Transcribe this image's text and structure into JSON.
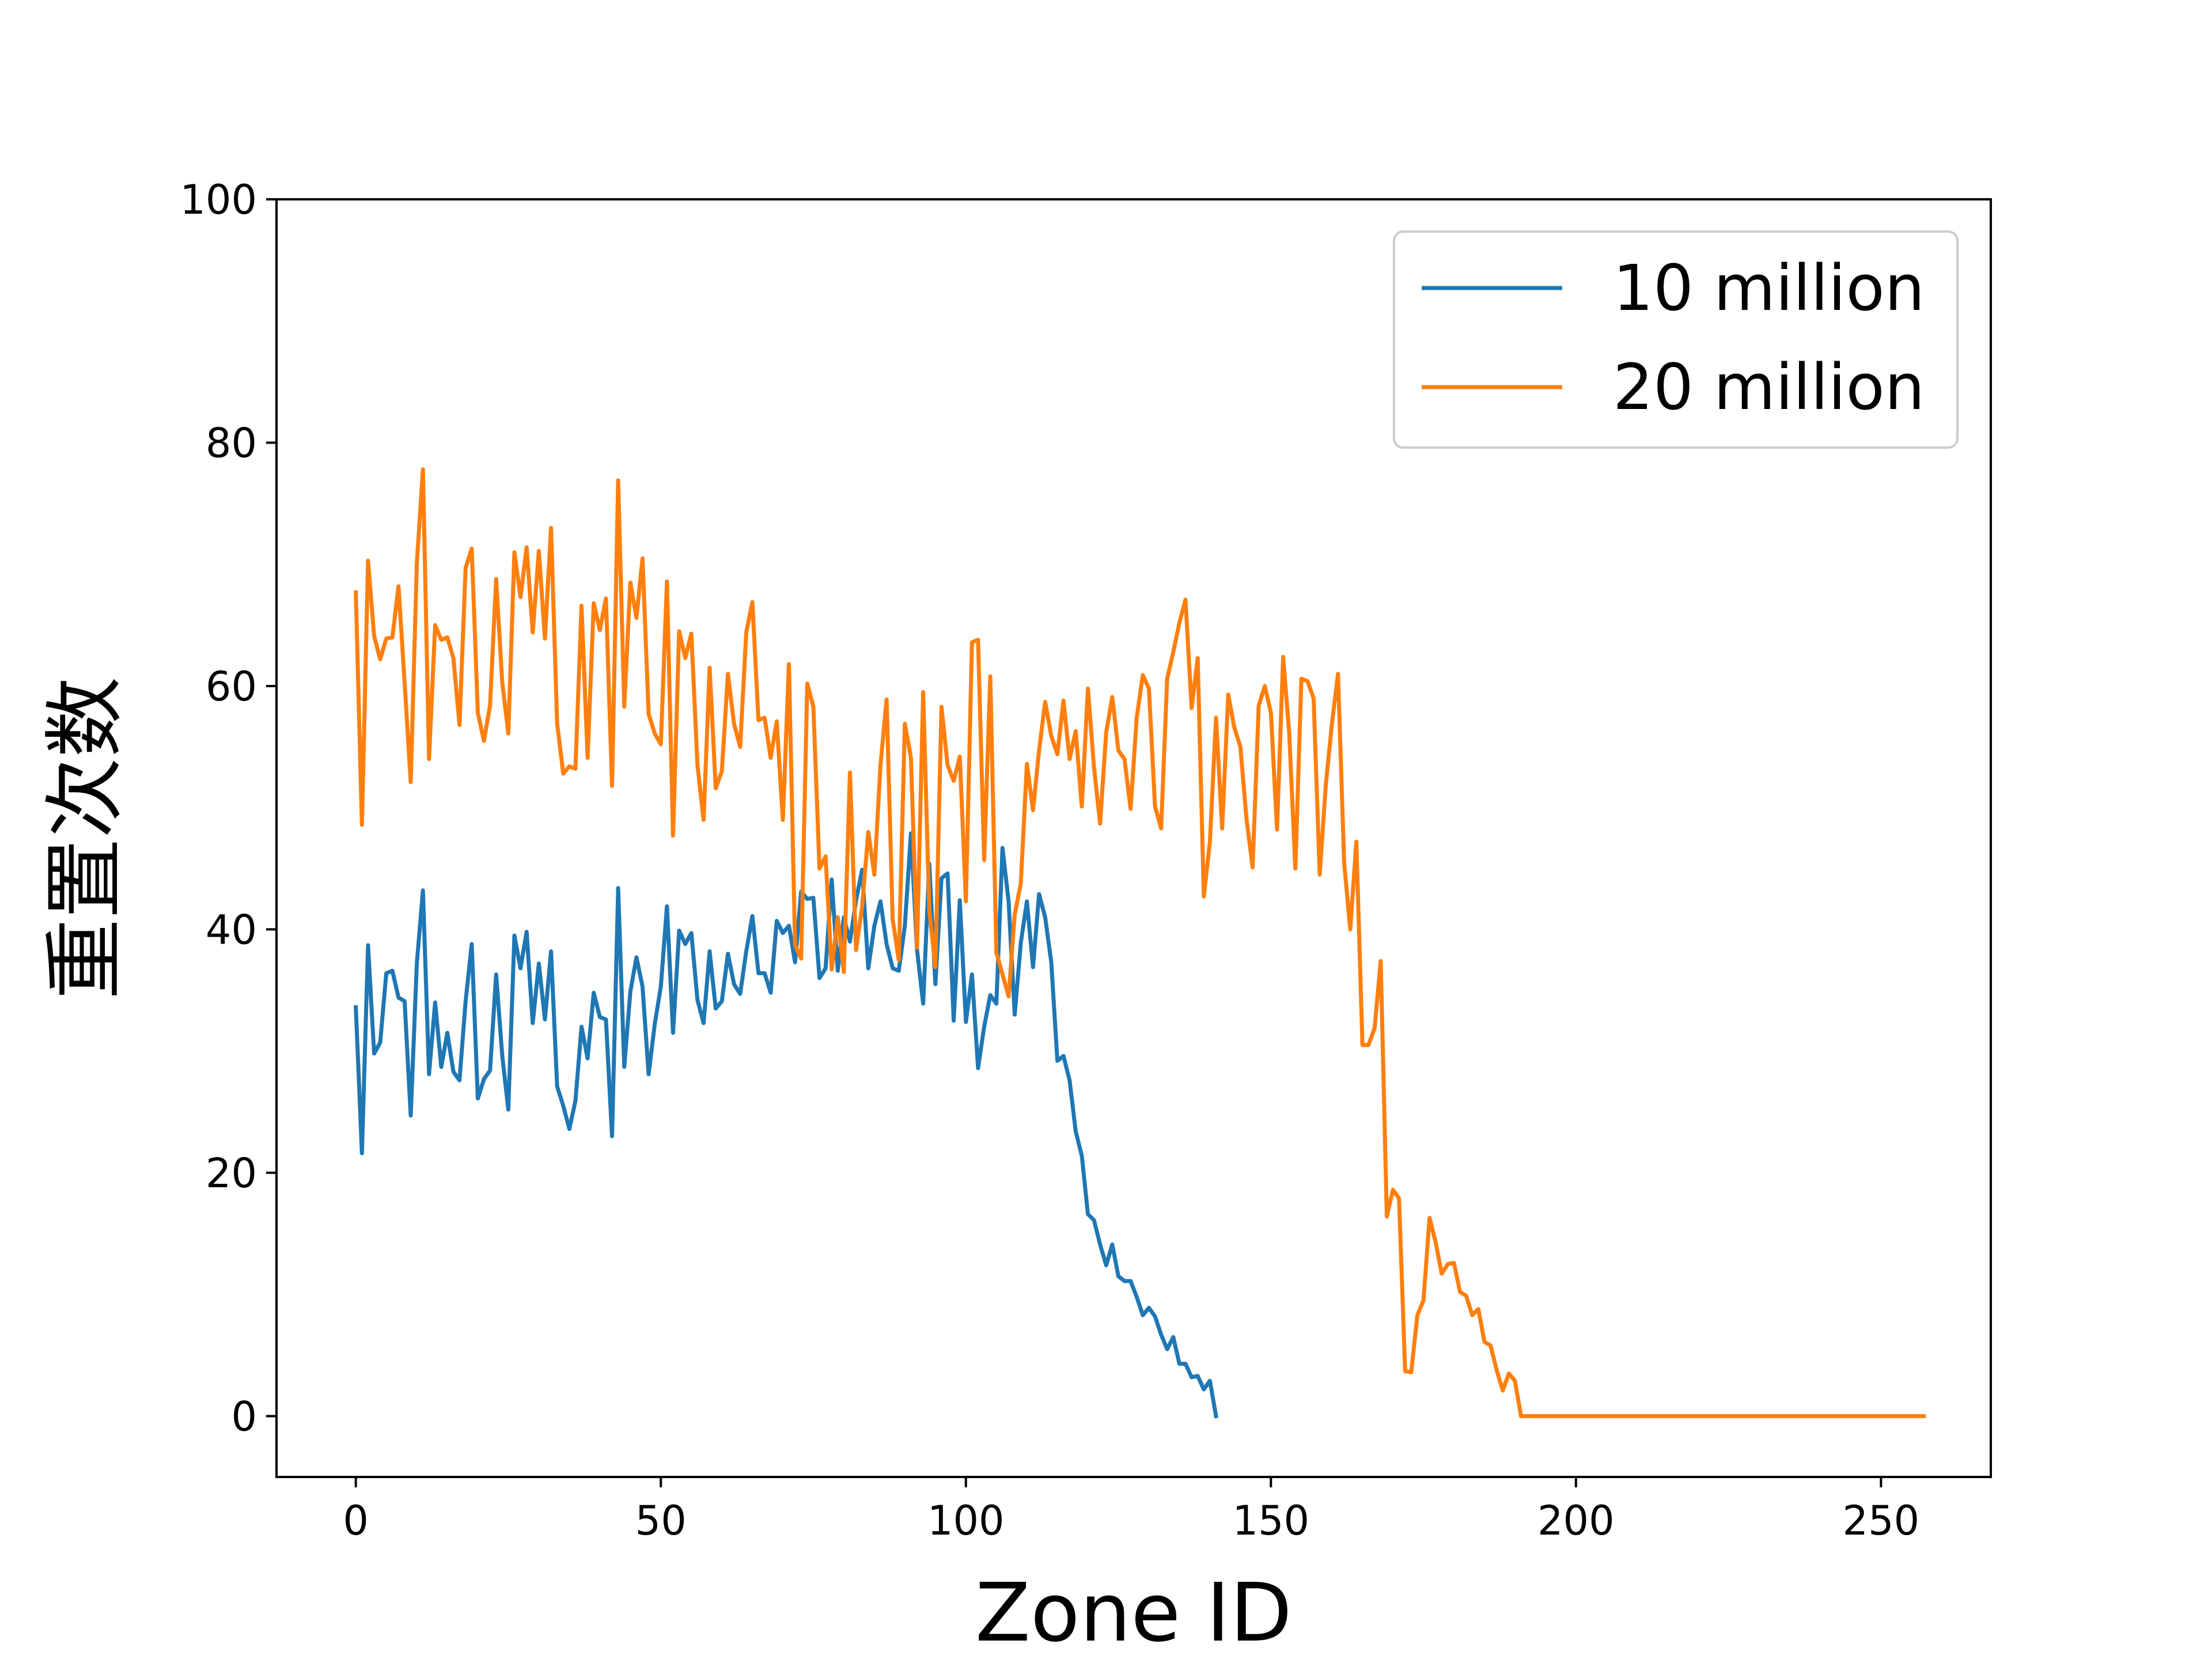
{
  "chart_data": {
    "type": "line",
    "xlabel": "Zone ID",
    "ylabel": "重置次数",
    "xlim": [
      -13,
      268
    ],
    "ylim": [
      -5,
      100
    ],
    "xticks": [
      0,
      50,
      100,
      150,
      200,
      250
    ],
    "yticks": [
      0,
      20,
      40,
      60,
      80,
      100
    ],
    "grid": false,
    "legend_position": "top-right",
    "series": [
      {
        "name": "10 million",
        "color": "#1f77b4",
        "x_start": 0,
        "values": [
          33.6,
          21.6,
          38.7,
          29.8,
          30.7,
          36.4,
          36.6,
          34.4,
          34.1,
          24.7,
          37.2,
          43.2,
          28.1,
          34,
          28.7,
          31.5,
          28.3,
          27.6,
          34.1,
          38.8,
          26.1,
          27.7,
          28.4,
          36.3,
          29.6,
          25.2,
          39.5,
          36.8,
          39.8,
          32.3,
          37.2,
          32.6,
          38.2,
          27.1,
          25.5,
          23.6,
          25.9,
          32,
          29.4,
          34.8,
          32.8,
          32.6,
          23,
          43.4,
          28.7,
          34.9,
          37.7,
          35.3,
          28.1,
          32.2,
          35.3,
          41.9,
          31.5,
          39.9,
          38.8,
          39.7,
          34.2,
          32.3,
          38.2,
          33.5,
          34.1,
          38,
          35.5,
          34.7,
          38.2,
          41.1,
          36.4,
          36.4,
          34.8,
          40.7,
          39.7,
          40.3,
          37.3,
          43.1,
          42.5,
          42.6,
          36,
          36.8,
          44.1,
          36.6,
          41,
          39,
          42.4,
          44.9,
          36.8,
          40.3,
          42.3,
          38.8,
          36.8,
          36.6,
          40.3,
          47.9,
          38.3,
          33.9,
          45.4,
          35.5,
          44.2,
          44.6,
          32.5,
          42.4,
          32.4,
          36.3,
          28.6,
          32,
          34.6,
          33.9,
          46.7,
          42.3,
          33,
          38.9,
          42.3,
          36.9,
          42.9,
          41,
          37.3,
          29.2,
          29.6,
          27.6,
          23.4,
          21.4,
          16.6,
          16.1,
          14.1,
          12.4,
          14.1,
          11.5,
          11.1,
          11.1,
          9.8,
          8.3,
          8.9,
          8.2,
          6.7,
          5.5,
          6.5,
          4.3,
          4.3,
          3.2,
          3.3,
          2.2,
          2.9,
          0
        ]
      },
      {
        "name": "20 million",
        "color": "#ff7f0e",
        "x_start": 0,
        "values": [
          67.7,
          48.6,
          70.3,
          64.1,
          62.2,
          63.9,
          64,
          68.2,
          60.3,
          52.1,
          70.1,
          77.8,
          54,
          65,
          63.8,
          64,
          62.3,
          56.8,
          69.7,
          71.3,
          57.8,
          55.5,
          58.4,
          68.8,
          60.3,
          56.1,
          71,
          67.3,
          71.4,
          64.4,
          71.1,
          63.9,
          73,
          56.9,
          52.8,
          53.4,
          53.2,
          66.6,
          54.1,
          66.8,
          64.6,
          67.2,
          51.8,
          76.9,
          58.3,
          68.5,
          65.6,
          70.5,
          57.7,
          56.1,
          55.2,
          68.6,
          47.7,
          64.5,
          62.3,
          64.3,
          53.5,
          49,
          61.5,
          51.6,
          53,
          61,
          56.9,
          55,
          64.4,
          66.9,
          57.2,
          57.4,
          54.1,
          57.1,
          49,
          61.8,
          38.7,
          37.6,
          60.2,
          58.3,
          45,
          46,
          36.7,
          41,
          36.5,
          52.9,
          38.3,
          41.9,
          48,
          44.5,
          53.5,
          58.9,
          40.8,
          37.5,
          56.9,
          54.1,
          38.5,
          59.5,
          41.6,
          36.9,
          58.3,
          53.5,
          52.2,
          54.2,
          42.3,
          63.6,
          63.8,
          45.7,
          60.8,
          38.1,
          36.3,
          34.5,
          41.2,
          43.8,
          53.6,
          49.8,
          54.7,
          58.7,
          55.9,
          54.4,
          58.8,
          54,
          56.3,
          50.1,
          59.8,
          53.3,
          48.7,
          56.2,
          59.1,
          54.7,
          54,
          49.9,
          57.4,
          60.9,
          59.8,
          50.1,
          48.3,
          60.6,
          62.8,
          65.2,
          67.1,
          58.2,
          62.3,
          42.7,
          47.2,
          57.4,
          48.3,
          59.3,
          56.6,
          55,
          49.1,
          45.1,
          58.4,
          60,
          57.8,
          48.2,
          62.4,
          56.1,
          45,
          60.6,
          60.4,
          59,
          44.5,
          51.9,
          56.9,
          61,
          45.5,
          40,
          47.2,
          30.5,
          30.5,
          31.9,
          37.4,
          16.4,
          18.6,
          17.9,
          3.7,
          3.6,
          8.3,
          9.5,
          16.3,
          14.3,
          11.7,
          12.5,
          12.6,
          10.2,
          9.9,
          8.3,
          8.8,
          6.1,
          5.8,
          3.8,
          2.1,
          3.5,
          2.9,
          0,
          0,
          0,
          0,
          0,
          0,
          0,
          0,
          0,
          0,
          0,
          0,
          0,
          0,
          0,
          0,
          0,
          0,
          0,
          0,
          0,
          0,
          0,
          0,
          0,
          0,
          0,
          0,
          0,
          0,
          0,
          0,
          0,
          0,
          0,
          0,
          0,
          0,
          0,
          0,
          0,
          0,
          0,
          0,
          0,
          0,
          0,
          0,
          0,
          0,
          0,
          0,
          0,
          0,
          0,
          0,
          0,
          0,
          0,
          0,
          0,
          0,
          0,
          0,
          0,
          0,
          0
        ]
      }
    ]
  }
}
